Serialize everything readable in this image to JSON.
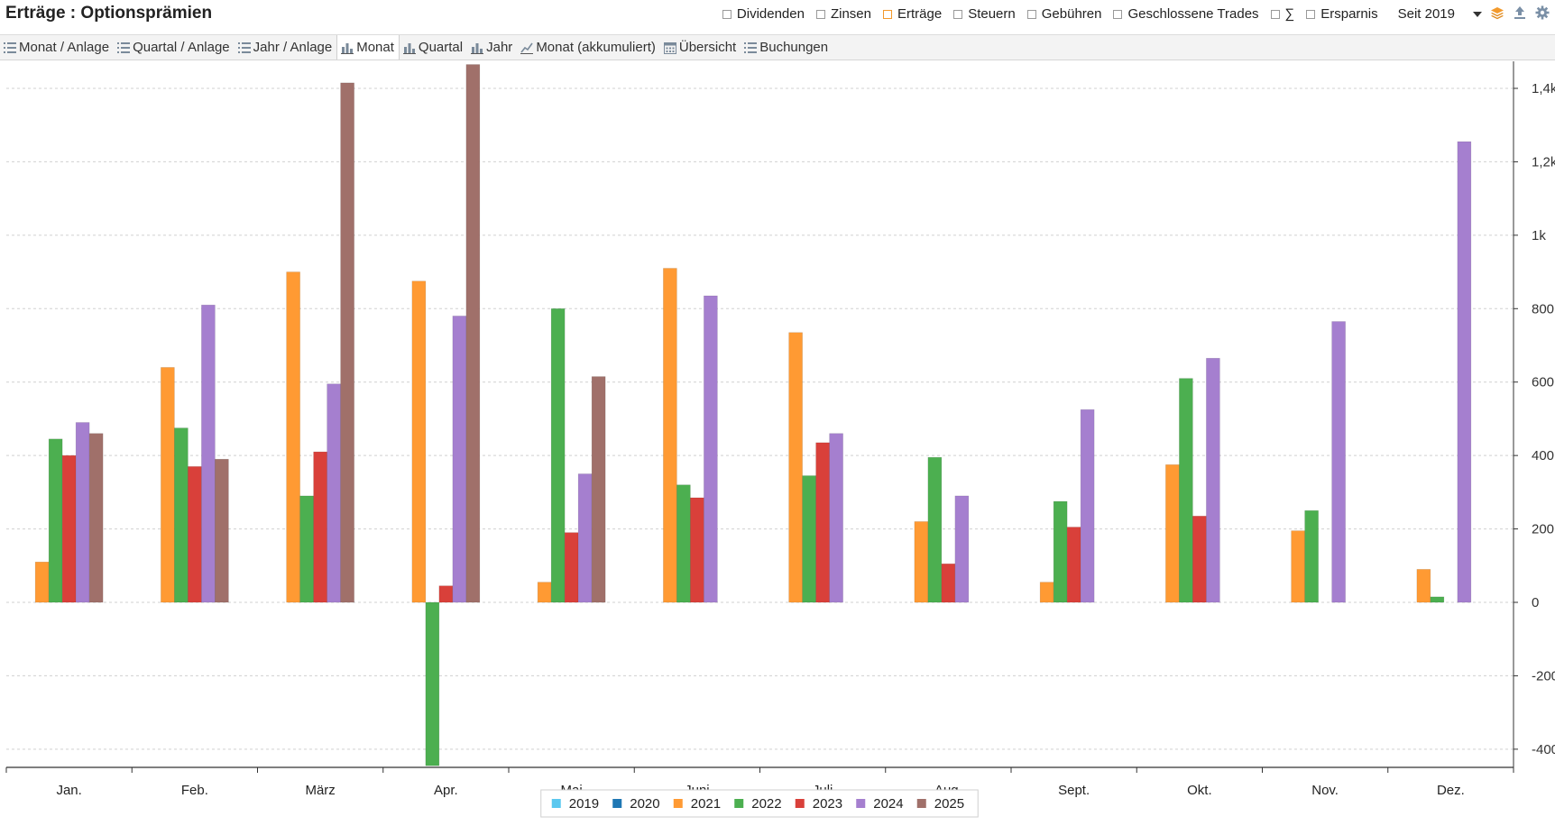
{
  "header": {
    "title": "Erträge : Optionsprämien",
    "filters": [
      {
        "label": "Dividenden",
        "checked": false
      },
      {
        "label": "Zinsen",
        "checked": false
      },
      {
        "label": "Erträge",
        "checked": true
      },
      {
        "label": "Steuern",
        "checked": false
      },
      {
        "label": "Gebühren",
        "checked": false
      },
      {
        "label": "Geschlossene Trades",
        "checked": false
      },
      {
        "label": "∑",
        "checked": false
      },
      {
        "label": "Ersparnis",
        "checked": false
      }
    ],
    "period_label": "Seit 2019"
  },
  "tabs": [
    {
      "label": "Monat / Anlage",
      "icon": "list-icon"
    },
    {
      "label": "Quartal / Anlage",
      "icon": "list-icon"
    },
    {
      "label": "Jahr / Anlage",
      "icon": "list-icon"
    },
    {
      "label": "Monat",
      "icon": "bar-chart-icon",
      "active": true
    },
    {
      "label": "Quartal",
      "icon": "bar-chart-icon"
    },
    {
      "label": "Jahr",
      "icon": "bar-chart-icon"
    },
    {
      "label": "Monat (akkumuliert)",
      "icon": "line-chart-icon"
    },
    {
      "label": "Übersicht",
      "icon": "calendar-icon"
    },
    {
      "label": "Buchungen",
      "icon": "list-icon"
    }
  ],
  "colors": {
    "accent": "#f39a2d",
    "grid": "#d0d0d0"
  },
  "chart_data": {
    "type": "bar",
    "categories": [
      "Jan.",
      "Feb.",
      "März",
      "Apr.",
      "Mai",
      "Juni",
      "Juli",
      "Aug.",
      "Sept.",
      "Okt.",
      "Nov.",
      "Dez."
    ],
    "ylim": [
      -460,
      1400
    ],
    "yticks": [
      -400,
      -200,
      0,
      200,
      400,
      600,
      800,
      1000,
      1200,
      1400
    ],
    "ytick_labels": [
      "-400",
      "-200",
      "0",
      "200",
      "400",
      "600",
      "800",
      "1k",
      "1,2k",
      "1,4k"
    ],
    "y_axis_position": "right",
    "grid": true,
    "legend_position": "bottom",
    "series": [
      {
        "name": "2019",
        "color": "#5bc8ef",
        "values": [
          null,
          null,
          null,
          null,
          null,
          null,
          null,
          null,
          null,
          null,
          null,
          null
        ]
      },
      {
        "name": "2020",
        "color": "#1f77b4",
        "values": [
          null,
          null,
          null,
          null,
          null,
          null,
          null,
          null,
          null,
          null,
          null,
          null
        ]
      },
      {
        "name": "2021",
        "color": "#ff9a33",
        "values": [
          110,
          640,
          900,
          875,
          55,
          910,
          735,
          220,
          55,
          375,
          195,
          90
        ]
      },
      {
        "name": "2022",
        "color": "#4caf50",
        "values": [
          445,
          475,
          290,
          -445,
          800,
          320,
          345,
          395,
          275,
          610,
          250,
          15
        ]
      },
      {
        "name": "2023",
        "color": "#d9403a",
        "values": [
          400,
          370,
          410,
          45,
          190,
          285,
          435,
          105,
          205,
          235,
          null,
          null
        ]
      },
      {
        "name": "2024",
        "color": "#a57fcf",
        "values": [
          490,
          810,
          595,
          780,
          350,
          835,
          460,
          290,
          525,
          665,
          765,
          1255
        ]
      },
      {
        "name": "2025",
        "color": "#a0706a",
        "values": [
          460,
          390,
          1415,
          1465,
          615,
          null,
          null,
          null,
          null,
          null,
          null,
          null
        ]
      }
    ]
  }
}
